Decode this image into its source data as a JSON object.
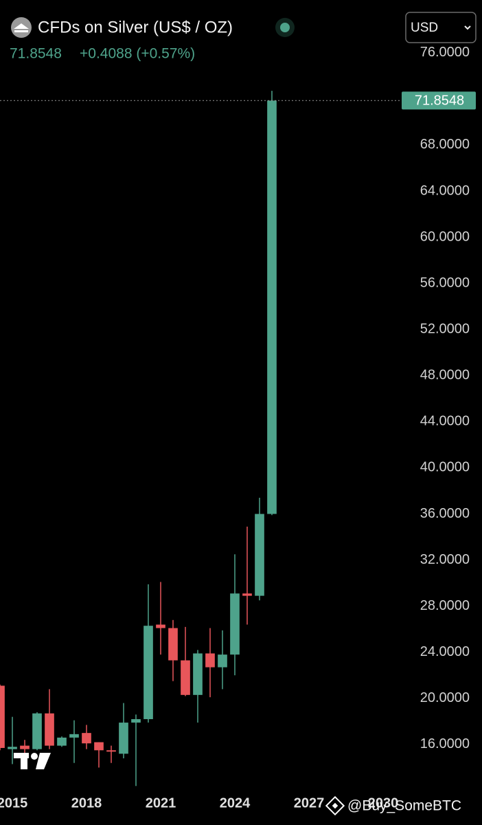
{
  "header": {
    "title": "CFDs on Silver (US$ / OZ)",
    "price": "71.8548",
    "change": "+0.4088 (+0.57%)",
    "currency": "USD"
  },
  "watermark": "@Buy_SomeBTC",
  "chart_data": {
    "type": "candlestick",
    "up_color": "#4ea38b",
    "down_color": "#e8565a",
    "x": [
      2014.5,
      2015,
      2015.5,
      2016,
      2016.5,
      2017,
      2017.5,
      2018,
      2018.5,
      2019,
      2019.5,
      2020,
      2020.5,
      2021,
      2021.5,
      2022,
      2022.5,
      2023,
      2023.5,
      2024,
      2024.5,
      2025,
      2025.5
    ],
    "open": [
      21.1,
      15.6,
      15.9,
      15.6,
      18.7,
      15.9,
      16.6,
      17.0,
      16.2,
      15.5,
      15.2,
      17.9,
      18.2,
      26.4,
      26.1,
      23.3,
      20.3,
      23.9,
      22.7,
      23.8,
      29.1,
      28.9,
      36.0
    ],
    "high": [
      21.2,
      18.4,
      16.4,
      18.8,
      20.8,
      16.7,
      18.1,
      17.7,
      16.2,
      15.9,
      19.6,
      18.6,
      29.9,
      30.1,
      26.8,
      26.2,
      24.2,
      26.1,
      25.9,
      32.5,
      34.9,
      37.4,
      72.7
    ],
    "low": [
      15.5,
      14.3,
      14.6,
      15.5,
      15.6,
      15.8,
      14.4,
      15.6,
      14.0,
      14.4,
      14.8,
      12.4,
      17.9,
      23.8,
      21.5,
      20.2,
      17.9,
      20.1,
      20.8,
      22.0,
      26.4,
      28.5,
      35.9
    ],
    "close": [
      15.7,
      15.8,
      15.6,
      18.7,
      15.9,
      16.6,
      16.9,
      16.1,
      15.5,
      15.4,
      17.9,
      18.2,
      26.3,
      26.1,
      23.3,
      20.3,
      23.9,
      22.7,
      23.8,
      29.1,
      28.9,
      36.0,
      71.8548
    ],
    "last_price_label": "71.8548",
    "xlim": [
      2014.5,
      2030.75
    ],
    "xticks": [
      2015,
      2018,
      2021,
      2024,
      2027,
      2030
    ],
    "ylim": [
      12,
      77
    ],
    "yticks": [
      {
        "value": 16,
        "label": "16.0000"
      },
      {
        "value": 20,
        "label": "20.0000"
      },
      {
        "value": 24,
        "label": "24.0000"
      },
      {
        "value": 28,
        "label": "28.0000"
      },
      {
        "value": 32,
        "label": "32.0000"
      },
      {
        "value": 36,
        "label": "36.0000"
      },
      {
        "value": 40,
        "label": "40.0000"
      },
      {
        "value": 44,
        "label": "44.0000"
      },
      {
        "value": 48,
        "label": "48.0000"
      },
      {
        "value": 52,
        "label": "52.0000"
      },
      {
        "value": 56,
        "label": "56.0000"
      },
      {
        "value": 60,
        "label": "60.0000"
      },
      {
        "value": 64,
        "label": "64.0000"
      },
      {
        "value": 68,
        "label": "68.0000"
      },
      {
        "value": 76,
        "label": "76.0000"
      }
    ]
  }
}
